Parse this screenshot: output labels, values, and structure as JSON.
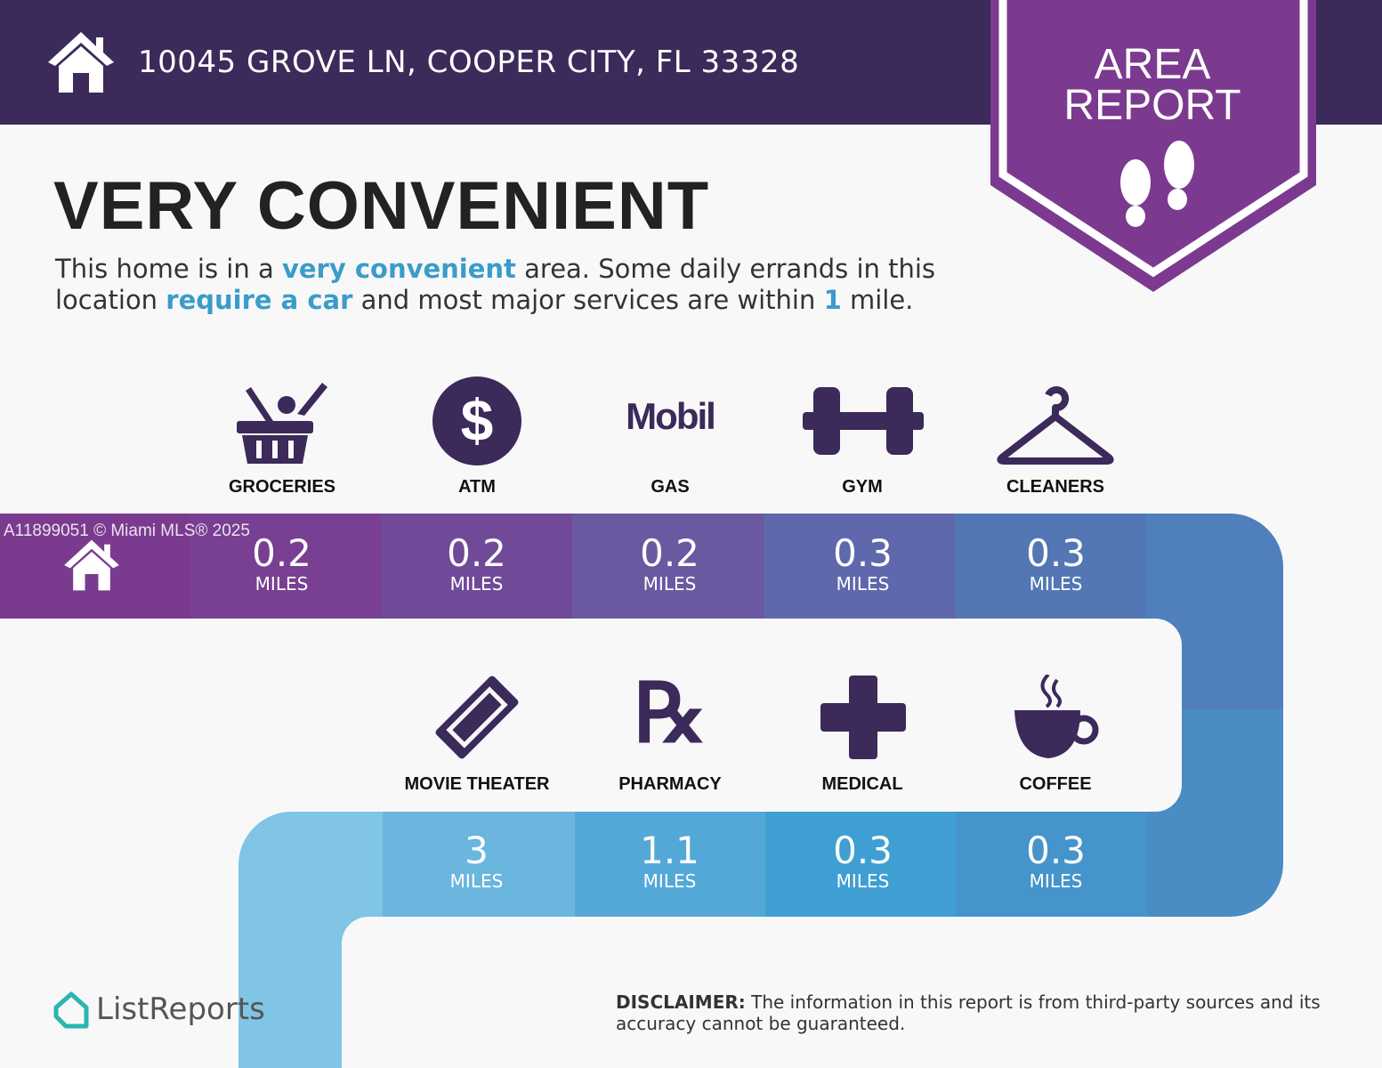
{
  "header": {
    "address": "10045 GROVE LN, COOPER CITY, FL 33328",
    "icon": "home-icon"
  },
  "badge": {
    "line1": "AREA",
    "line2": "REPORT",
    "icon": "footprints-icon"
  },
  "headline": "VERY CONVENIENT",
  "description": {
    "p1": "This home is in a ",
    "h1": "very convenient",
    "p2": " area. Some daily errands in this location ",
    "h2": "require a car",
    "p3": " and most major services are within ",
    "h3": "1",
    "p4": " mile."
  },
  "watermark": "A11899051 © Miami MLS® 2025",
  "unit": "MILES",
  "top_row": [
    {
      "label": "GROCERIES",
      "distance": "0.2",
      "icon": "grocery-basket-icon"
    },
    {
      "label": "ATM",
      "distance": "0.2",
      "icon": "dollar-icon"
    },
    {
      "label": "GAS",
      "distance": "0.2",
      "icon": "mobil-logo"
    },
    {
      "label": "GYM",
      "distance": "0.3",
      "icon": "dumbbell-icon"
    },
    {
      "label": "CLEANERS",
      "distance": "0.3",
      "icon": "hanger-icon"
    }
  ],
  "bottom_row": [
    {
      "label": "MOVIE THEATER",
      "distance": "3",
      "icon": "ticket-icon"
    },
    {
      "label": "PHARMACY",
      "distance": "1.1",
      "icon": "rx-icon"
    },
    {
      "label": "MEDICAL",
      "distance": "0.3",
      "icon": "medical-cross-icon"
    },
    {
      "label": "COFFEE",
      "distance": "0.3",
      "icon": "coffee-cup-icon"
    }
  ],
  "gas_logo_text": "Mobil",
  "footer": {
    "logo": "ListReports",
    "disclaimer_label": "DISCLAIMER:",
    "disclaimer_text": " The information in this report is from third-party sources and its accuracy cannot be guaranteed."
  },
  "colors": {
    "header": "#3b2a5a",
    "badge": "#7b3a8f",
    "icon": "#3b2a5a",
    "highlight": "#3a9cc9"
  }
}
